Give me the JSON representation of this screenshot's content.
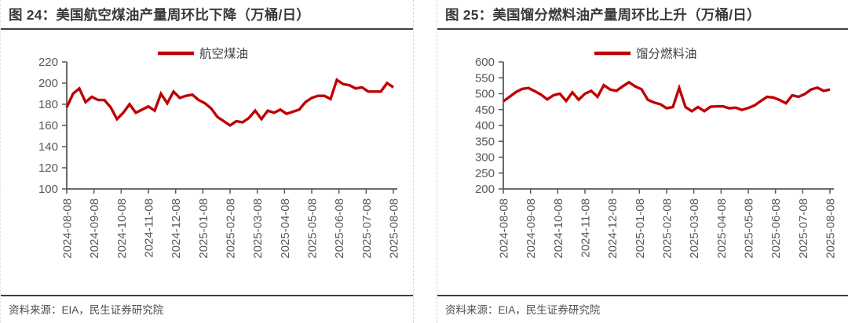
{
  "accent_color": "#c00000",
  "panels": [
    {
      "title": "图 24：美国航空煤油产量周环比下降（万桶/日）",
      "source": "资料来源：EIA，民生证券研究院"
    },
    {
      "title": "图 25：美国馏分燃料油产量周环比上升（万桶/日）",
      "source": "资料来源：EIA，民生证券研究院"
    }
  ],
  "chart_data": [
    {
      "type": "line",
      "title": "图 24：美国航空煤油产量周环比下降（万桶/日）",
      "legend_position": "top",
      "grid": false,
      "color": "#c00000",
      "x_range": [
        "2024-08-08",
        "2025-08-08"
      ],
      "x_frequency": "weekly",
      "x_tick_labels": [
        "2024-08-08",
        "2024-09-08",
        "2024-10-08",
        "2024-11-08",
        "2024-12-08",
        "2025-01-08",
        "2025-02-08",
        "2025-03-08",
        "2025-04-08",
        "2025-05-08",
        "2025-06-08",
        "2025-07-08",
        "2025-08-08"
      ],
      "ylim": [
        100,
        220
      ],
      "yticks": [
        100,
        120,
        140,
        160,
        180,
        200,
        220
      ],
      "series": [
        {
          "name": "航空煤油",
          "values": [
            177,
            190,
            195,
            182,
            187,
            184,
            184,
            177,
            166,
            172,
            180,
            172,
            175,
            178,
            174,
            190,
            181,
            192,
            186,
            188,
            189,
            184,
            181,
            176,
            168,
            164,
            160,
            164,
            163,
            167,
            174,
            166,
            174,
            172,
            175,
            171,
            173,
            175,
            182,
            186,
            188,
            188,
            185,
            203,
            199,
            198,
            195,
            196,
            192,
            192,
            192,
            200,
            196
          ]
        }
      ]
    },
    {
      "type": "line",
      "title": "图 25：美国馏分燃料油产量周环比上升（万桶/日）",
      "legend_position": "top",
      "grid": false,
      "color": "#c00000",
      "x_range": [
        "2024-08-08",
        "2025-08-08"
      ],
      "x_frequency": "weekly",
      "x_tick_labels": [
        "2024-08-08",
        "2024-09-08",
        "2024-10-08",
        "2024-11-08",
        "2024-12-08",
        "2025-01-08",
        "2025-02-08",
        "2025-03-08",
        "2025-04-08",
        "2025-05-08",
        "2025-06-08",
        "2025-07-08",
        "2025-08-08"
      ],
      "ylim": [
        200,
        600
      ],
      "yticks": [
        200,
        250,
        300,
        350,
        400,
        450,
        500,
        550,
        600
      ],
      "series": [
        {
          "name": "馏分燃料油",
          "values": [
            476,
            490,
            505,
            515,
            518,
            508,
            497,
            482,
            495,
            500,
            477,
            504,
            481,
            500,
            509,
            490,
            527,
            513,
            509,
            523,
            536,
            523,
            514,
            481,
            472,
            467,
            454,
            458,
            518,
            458,
            445,
            458,
            445,
            459,
            460,
            460,
            454,
            456,
            449,
            455,
            463,
            477,
            490,
            488,
            480,
            470,
            495,
            490,
            499,
            513,
            519,
            509,
            513
          ]
        }
      ]
    }
  ]
}
